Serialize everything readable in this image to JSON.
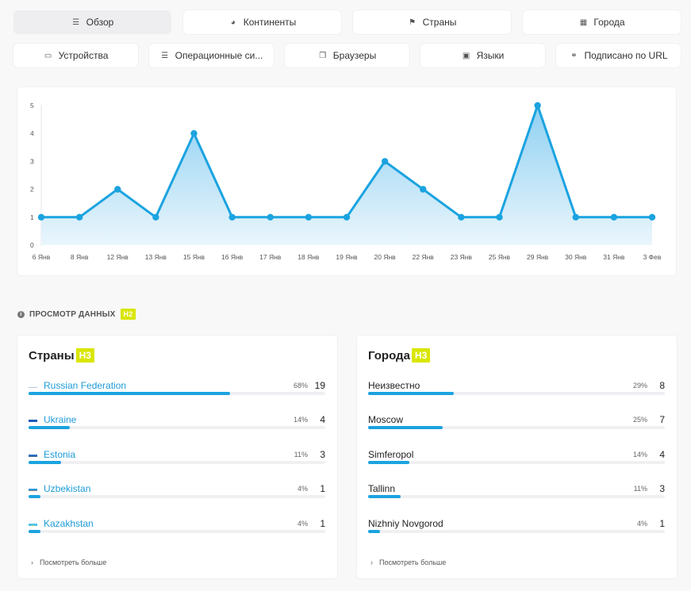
{
  "tabs_row1": [
    {
      "label": "Обзор",
      "icon": "list-icon",
      "glyph": "☰",
      "active": true
    },
    {
      "label": "Континенты",
      "icon": "globe-icon",
      "glyph": "◕",
      "active": false
    },
    {
      "label": "Страны",
      "icon": "flag-icon",
      "glyph": "⚑",
      "active": false
    },
    {
      "label": "Города",
      "icon": "building-icon",
      "glyph": "▦",
      "active": false
    }
  ],
  "tabs_row2": [
    {
      "label": "Устройства",
      "icon": "laptop-icon",
      "glyph": "▭"
    },
    {
      "label": "Операционные си...",
      "icon": "server-icon",
      "glyph": "☰"
    },
    {
      "label": "Браузеры",
      "icon": "windows-icon",
      "glyph": "❐"
    },
    {
      "label": "Языки",
      "icon": "language-icon",
      "glyph": "▣"
    },
    {
      "label": "Подписано по URL",
      "icon": "link-icon",
      "glyph": "⚭"
    }
  ],
  "chart_data": {
    "type": "area",
    "categories": [
      "6 Янв",
      "8 Янв",
      "12 Янв",
      "13 Янв",
      "15 Янв",
      "16 Янв",
      "17 Янв",
      "18 Янв",
      "19 Янв",
      "20 Янв",
      "22 Янв",
      "23 Янв",
      "25 Янв",
      "29 Янв",
      "30 Янв",
      "31 Янв",
      "3 Фев"
    ],
    "values": [
      1,
      1,
      2,
      1,
      4,
      1,
      1,
      1,
      1,
      3,
      2,
      1,
      1,
      5,
      1,
      1,
      1
    ],
    "y_ticks": [
      0,
      1,
      2,
      3,
      4,
      5
    ],
    "ylim": [
      0,
      5
    ],
    "grid": false,
    "line_color": "#1ba3e0",
    "fill_color_top": "#8fd0f2",
    "fill_color_bottom": "#eaf6fc"
  },
  "section": {
    "title": "ПРОСМОТР ДАННЫХ",
    "badge": "H2",
    "icon": "info-icon"
  },
  "countries": {
    "title": "Страны",
    "badge": "H3",
    "more_label": "Посмотреть больше",
    "rows": [
      {
        "name": "Russian Federation",
        "pct": "68%",
        "count": "19",
        "fraction": 0.68,
        "flag": "ru"
      },
      {
        "name": "Ukraine",
        "pct": "14%",
        "count": "4",
        "fraction": 0.14,
        "flag": "ua"
      },
      {
        "name": "Estonia",
        "pct": "11%",
        "count": "3",
        "fraction": 0.11,
        "flag": "ee"
      },
      {
        "name": "Uzbekistan",
        "pct": "4%",
        "count": "1",
        "fraction": 0.04,
        "flag": "uz"
      },
      {
        "name": "Kazakhstan",
        "pct": "4%",
        "count": "1",
        "fraction": 0.04,
        "flag": "kz"
      }
    ]
  },
  "cities": {
    "title": "Города",
    "badge": "H3",
    "more_label": "Посмотреть больше",
    "rows": [
      {
        "name": "Неизвестно",
        "pct": "29%",
        "count": "8",
        "fraction": 0.29
      },
      {
        "name": "Moscow",
        "pct": "25%",
        "count": "7",
        "fraction": 0.25
      },
      {
        "name": "Simferopol",
        "pct": "14%",
        "count": "4",
        "fraction": 0.14
      },
      {
        "name": "Tallinn",
        "pct": "11%",
        "count": "3",
        "fraction": 0.11
      },
      {
        "name": "Nizhniy Novgorod",
        "pct": "4%",
        "count": "1",
        "fraction": 0.04
      }
    ]
  }
}
